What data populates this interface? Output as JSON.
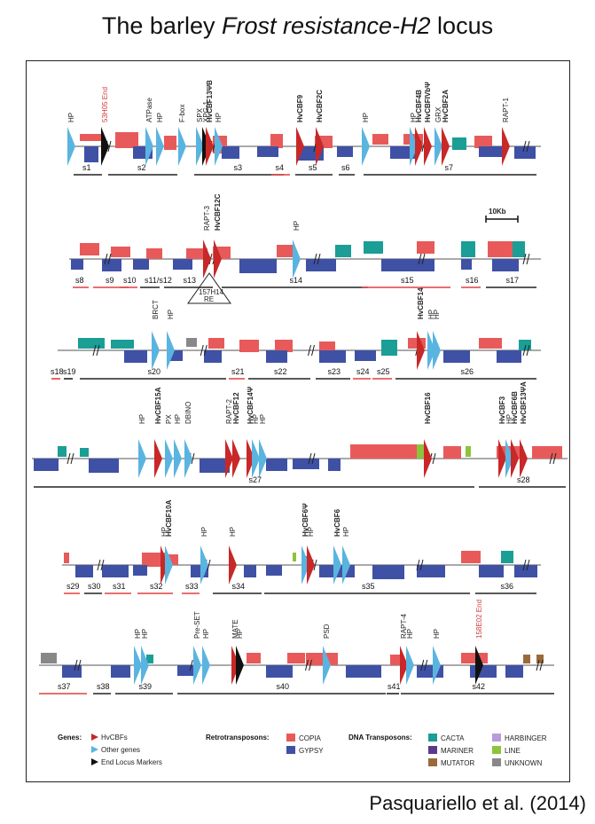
{
  "title": {
    "prefix": "The barley ",
    "italic": "Frost resistance-H2",
    "suffix": " locus"
  },
  "citation": "Pasquariello et al. (2014)",
  "colors": {
    "copia": "#e85a5a",
    "gypsy": "#3f51a5",
    "cacta": "#1a9e96",
    "mariner": "#5b3a8c",
    "mutator": "#9b6a3a",
    "harbinger": "#b89cd9",
    "line": "#8cc43c",
    "unknown": "#888888",
    "hvcbf": "#c82828",
    "other_gene": "#5ab4e0",
    "end_marker": "#111111",
    "red_segment_bar": "#e04040"
  },
  "scale_bar": {
    "label": "10Kb"
  },
  "rows": [
    {
      "genes": [
        {
          "label": "HP",
          "bold": false,
          "red": false
        },
        {
          "label": "53H05 End",
          "bold": false,
          "red": true
        },
        {
          "label": "ATPase",
          "bold": false,
          "red": false
        },
        {
          "label": "HP",
          "bold": false,
          "red": false
        },
        {
          "label": "F-box",
          "bold": false,
          "red": false
        },
        {
          "label": "SPX",
          "bold": false,
          "red": false
        },
        {
          "label": "XPG-1",
          "bold": false,
          "red": false
        },
        {
          "label": "HvCBF13ΨB",
          "bold": true,
          "red": false
        },
        {
          "label": "HP",
          "bold": false,
          "red": false
        },
        {
          "label": "HvCBF9",
          "bold": true,
          "red": false
        },
        {
          "label": "HvCBF2C",
          "bold": true,
          "red": false
        },
        {
          "label": "HP",
          "bold": false,
          "red": false
        },
        {
          "label": "HP",
          "bold": false,
          "red": false
        },
        {
          "label": "HvCBF4B",
          "bold": true,
          "red": false
        },
        {
          "label": "HvCBFIVbΨ",
          "bold": true,
          "red": false
        },
        {
          "label": "GRX",
          "bold": false,
          "red": false
        },
        {
          "label": "HvCBF2A",
          "bold": true,
          "red": false
        },
        {
          "label": "RAPT-1",
          "bold": false,
          "red": false
        }
      ],
      "segments": [
        "s1",
        "s2",
        "s3",
        "s4",
        "s5",
        "s6",
        "s7"
      ]
    },
    {
      "genes": [
        {
          "label": "RAPT-3",
          "bold": false,
          "red": false
        },
        {
          "label": "HvCBF12C",
          "bold": true,
          "red": false
        },
        {
          "label": "HP",
          "bold": false,
          "red": false
        }
      ],
      "segments": [
        "s8",
        "s9",
        "s10",
        "s11/s12",
        "s13",
        "s14",
        "s15",
        "s16",
        "s17"
      ],
      "callout": {
        "line1": "157H14",
        "line2": "RE"
      }
    },
    {
      "genes": [
        {
          "label": "BRCT",
          "bold": false,
          "red": false
        },
        {
          "label": "HP",
          "bold": false,
          "red": false
        },
        {
          "label": "HvCBF14",
          "bold": true,
          "red": false
        },
        {
          "label": "HP",
          "bold": false,
          "red": false
        },
        {
          "label": "HP",
          "bold": false,
          "red": false
        }
      ],
      "segments": [
        "s18",
        "s19",
        "s20",
        "s21",
        "s22",
        "s23",
        "s24",
        "s25",
        "s26"
      ]
    },
    {
      "genes": [
        {
          "label": "HP",
          "bold": false,
          "red": false
        },
        {
          "label": "HvCBF15A",
          "bold": true,
          "red": false
        },
        {
          "label": "PX",
          "bold": false,
          "red": false
        },
        {
          "label": "HP",
          "bold": false,
          "red": false
        },
        {
          "label": "DBINO",
          "bold": false,
          "red": false
        },
        {
          "label": "RAPT-2",
          "bold": false,
          "red": false
        },
        {
          "label": "HvCBF12",
          "bold": true,
          "red": false
        },
        {
          "label": "HvCBF14Ψ",
          "bold": true,
          "red": false
        },
        {
          "label": "HP",
          "bold": false,
          "red": false
        },
        {
          "label": "HP",
          "bold": false,
          "red": false
        },
        {
          "label": "HvCBF16",
          "bold": true,
          "red": false
        },
        {
          "label": "HvCBF3",
          "bold": true,
          "red": false
        },
        {
          "label": "HP",
          "bold": false,
          "red": false
        },
        {
          "label": "HvCBF6B",
          "bold": true,
          "red": false
        },
        {
          "label": "HvCBF13ΨA",
          "bold": true,
          "red": false
        }
      ],
      "segments": [
        "s27",
        "s28"
      ]
    },
    {
      "genes": [
        {
          "label": "HP",
          "bold": false,
          "red": false
        },
        {
          "label": "HvCBF10A",
          "bold": true,
          "red": false
        },
        {
          "label": "HP",
          "bold": false,
          "red": false
        },
        {
          "label": "HvCBF6Ψ",
          "bold": true,
          "red": false
        },
        {
          "label": "HP",
          "bold": false,
          "red": false
        },
        {
          "label": "HvCBF6",
          "bold": true,
          "red": false
        },
        {
          "label": "HP",
          "bold": false,
          "red": false
        },
        {
          "label": "HP",
          "bold": false,
          "red": false
        }
      ],
      "segments": [
        "s29",
        "s30",
        "s31",
        "s32",
        "s33",
        "s34",
        "s35",
        "s36"
      ]
    },
    {
      "genes": [
        {
          "label": "HP",
          "bold": false,
          "red": false
        },
        {
          "label": "HP",
          "bold": false,
          "red": false
        },
        {
          "label": "Pre-SET",
          "bold": false,
          "red": false
        },
        {
          "label": "HP",
          "bold": false,
          "red": false
        },
        {
          "label": "MATE",
          "bold": false,
          "red": false
        },
        {
          "label": "HP",
          "bold": false,
          "red": false
        },
        {
          "label": "PSD",
          "bold": false,
          "red": false
        },
        {
          "label": "RAPT-4",
          "bold": false,
          "red": false
        },
        {
          "label": "HP",
          "bold": false,
          "red": false
        },
        {
          "label": "HP",
          "bold": false,
          "red": false
        },
        {
          "label": "158E02 End",
          "bold": false,
          "red": true
        }
      ],
      "segments": [
        "s37",
        "s38",
        "s39",
        "s40",
        "s41",
        "s42"
      ]
    }
  ],
  "legend": {
    "genes": {
      "heading": "Genes:",
      "items": [
        "HvCBFs",
        "Other genes",
        "End Locus Markers"
      ]
    },
    "retro": {
      "heading": "Retrotransposons:",
      "items": [
        "COPIA",
        "GYPSY"
      ]
    },
    "dna": {
      "heading": "DNA Transposons:",
      "items": [
        "CACTA",
        "MARINER",
        "MUTATOR",
        "HARBINGER",
        "LINE",
        "UNKNOWN"
      ]
    }
  }
}
